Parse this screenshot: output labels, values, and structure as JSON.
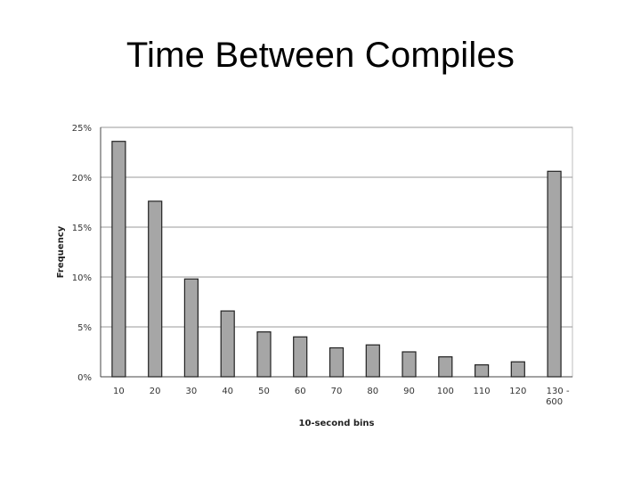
{
  "slide": {
    "title": "Time Between Compiles"
  },
  "chart_data": {
    "type": "bar",
    "title": "",
    "xlabel": "10-second bins",
    "ylabel": "Frequency",
    "categories": [
      "10",
      "20",
      "30",
      "40",
      "50",
      "60",
      "70",
      "80",
      "90",
      "100",
      "110",
      "120",
      "130 - 600"
    ],
    "values": [
      23.6,
      17.6,
      9.8,
      6.6,
      4.5,
      4.0,
      2.9,
      3.2,
      2.5,
      2.0,
      1.2,
      1.5,
      20.6
    ],
    "ylim": [
      0,
      25
    ],
    "yticks": [
      0,
      5,
      10,
      15,
      20,
      25
    ],
    "ytick_labels": [
      "0%",
      "5%",
      "10%",
      "15%",
      "20%",
      "25%"
    ],
    "grid": "horizontal",
    "legend": "none",
    "colors": {
      "bar": "#a6a6a6",
      "bar_outline": "#222222",
      "grid": "#9a9a9a",
      "frame": "#bdbdbd"
    }
  }
}
